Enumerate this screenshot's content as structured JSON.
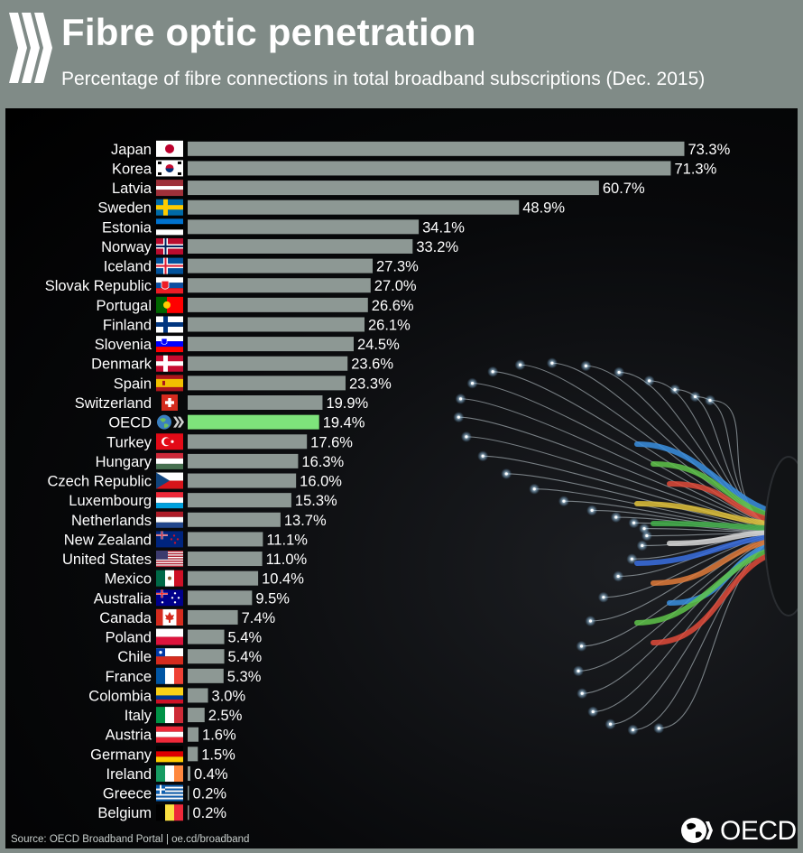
{
  "header": {
    "title": "Fibre optic penetration",
    "subtitle": "Percentage of fibre connections in total broadband subscriptions (Dec. 2015)"
  },
  "footer": {
    "source": "Source: OECD Broadband Portal | oe.cd/broadband",
    "logo_text": "OECD"
  },
  "colors": {
    "bar": "#8d9894",
    "highlight_bar": "#7ee37b",
    "background": "#808b87",
    "panel": "#000000",
    "text": "#ffffff"
  },
  "chart_data": {
    "type": "bar",
    "orientation": "horizontal",
    "title": "Fibre optic penetration",
    "subtitle": "Percentage of fibre connections in total broadband subscriptions (Dec. 2015)",
    "value_suffix": "%",
    "highlight": "OECD",
    "categories": [
      "Japan",
      "Korea",
      "Latvia",
      "Sweden",
      "Estonia",
      "Norway",
      "Iceland",
      "Slovak Republic",
      "Portugal",
      "Finland",
      "Slovenia",
      "Denmark",
      "Spain",
      "Switzerland",
      "OECD",
      "Turkey",
      "Hungary",
      "Czech Republic",
      "Luxembourg",
      "Netherlands",
      "New Zealand",
      "United States",
      "Mexico",
      "Australia",
      "Canada",
      "Poland",
      "Chile",
      "France",
      "Colombia",
      "Italy",
      "Austria",
      "Germany",
      "Ireland",
      "Greece",
      "Belgium"
    ],
    "values": [
      73.3,
      71.3,
      60.7,
      48.9,
      34.1,
      33.2,
      27.3,
      27.0,
      26.6,
      26.1,
      24.5,
      23.6,
      23.3,
      19.9,
      19.4,
      17.6,
      16.3,
      16.0,
      15.3,
      13.7,
      11.1,
      11.0,
      10.4,
      9.5,
      7.4,
      5.4,
      5.4,
      5.3,
      3.0,
      2.5,
      1.6,
      1.5,
      0.4,
      0.2,
      0.2
    ],
    "value_labels": [
      "73.3%",
      "71.3%",
      "60.7%",
      "48.9%",
      "34.1%",
      "33.2%",
      "27.3%",
      "27.0%",
      "26.6%",
      "26.1%",
      "24.5%",
      "23.6%",
      "23.3%",
      "19.9%",
      "19.4%",
      "17.6%",
      "16.3%",
      "16.0%",
      "15.3%",
      "13.7%",
      "11.1%",
      "11.0%",
      "10.4%",
      "9.5%",
      "7.4%",
      "5.4%",
      "5.4%",
      "5.3%",
      "3.0%",
      "2.5%",
      "1.6%",
      "1.5%",
      "0.4%",
      "0.2%",
      "0.2%"
    ],
    "flags": [
      "japan-flag",
      "korea-flag",
      "latvia-flag",
      "sweden-flag",
      "estonia-flag",
      "norway-flag",
      "iceland-flag",
      "slovak-republic-flag",
      "portugal-flag",
      "finland-flag",
      "slovenia-flag",
      "denmark-flag",
      "spain-flag",
      "switzerland-flag",
      "oecd-globe",
      "turkey-flag",
      "hungary-flag",
      "czech-republic-flag",
      "luxembourg-flag",
      "netherlands-flag",
      "new-zealand-flag",
      "united-states-flag",
      "mexico-flag",
      "australia-flag",
      "canada-flag",
      "poland-flag",
      "chile-flag",
      "france-flag",
      "colombia-flag",
      "italy-flag",
      "austria-flag",
      "germany-flag",
      "ireland-flag",
      "greece-flag",
      "belgium-flag"
    ],
    "xlim": [
      0,
      75
    ],
    "grid": false,
    "legend": "none"
  }
}
